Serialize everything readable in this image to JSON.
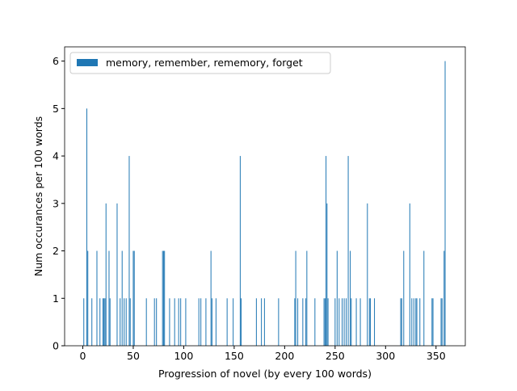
{
  "chart_data": {
    "type": "bar",
    "xlabel": "Progression of novel (by every 100 words)",
    "ylabel": "Num occurances per 100 words",
    "series": [
      {
        "name": "memory, remember, rememory, forget",
        "color": "#1f77b4",
        "x": [
          1,
          4,
          5,
          9,
          14,
          17,
          20,
          21,
          22,
          23,
          26,
          27,
          34,
          37,
          39,
          41,
          43,
          46,
          47,
          50,
          51,
          63,
          71,
          73,
          79,
          80,
          81,
          86,
          91,
          95,
          97,
          102,
          115,
          117,
          122,
          127,
          128,
          132,
          143,
          149,
          156,
          157,
          172,
          177,
          180,
          194,
          210,
          211,
          213,
          218,
          221,
          222,
          230,
          239,
          240,
          241,
          242,
          243,
          250,
          252,
          254,
          257,
          259,
          261,
          263,
          265,
          266,
          271,
          275,
          282,
          284,
          285,
          289,
          315,
          316,
          318,
          324,
          326,
          328,
          330,
          331,
          334,
          338,
          346,
          347,
          355,
          356,
          358,
          359
        ],
        "values": [
          1,
          5,
          2,
          1,
          2,
          1,
          1,
          1,
          1,
          3,
          2,
          1,
          3,
          1,
          2,
          1,
          1,
          4,
          1,
          2,
          2,
          1,
          1,
          1,
          2,
          2,
          2,
          1,
          1,
          1,
          1,
          1,
          1,
          1,
          1,
          2,
          1,
          1,
          1,
          1,
          4,
          1,
          1,
          1,
          1,
          1,
          1,
          2,
          1,
          1,
          1,
          2,
          1,
          1,
          1,
          4,
          3,
          1,
          1,
          2,
          1,
          1,
          1,
          1,
          4,
          2,
          1,
          1,
          1,
          3,
          1,
          1,
          1,
          1,
          1,
          2,
          3,
          1,
          1,
          1,
          1,
          1,
          2,
          1,
          1,
          1,
          1,
          2,
          6
        ]
      }
    ],
    "bar_width": 0.8,
    "xlim": [
      -18,
      379
    ],
    "ylim": [
      0,
      6.3
    ],
    "xticks": [
      0,
      50,
      100,
      150,
      200,
      250,
      300,
      350
    ],
    "yticks": [
      0,
      1,
      2,
      3,
      4,
      5,
      6
    ],
    "legend": "upper left"
  }
}
